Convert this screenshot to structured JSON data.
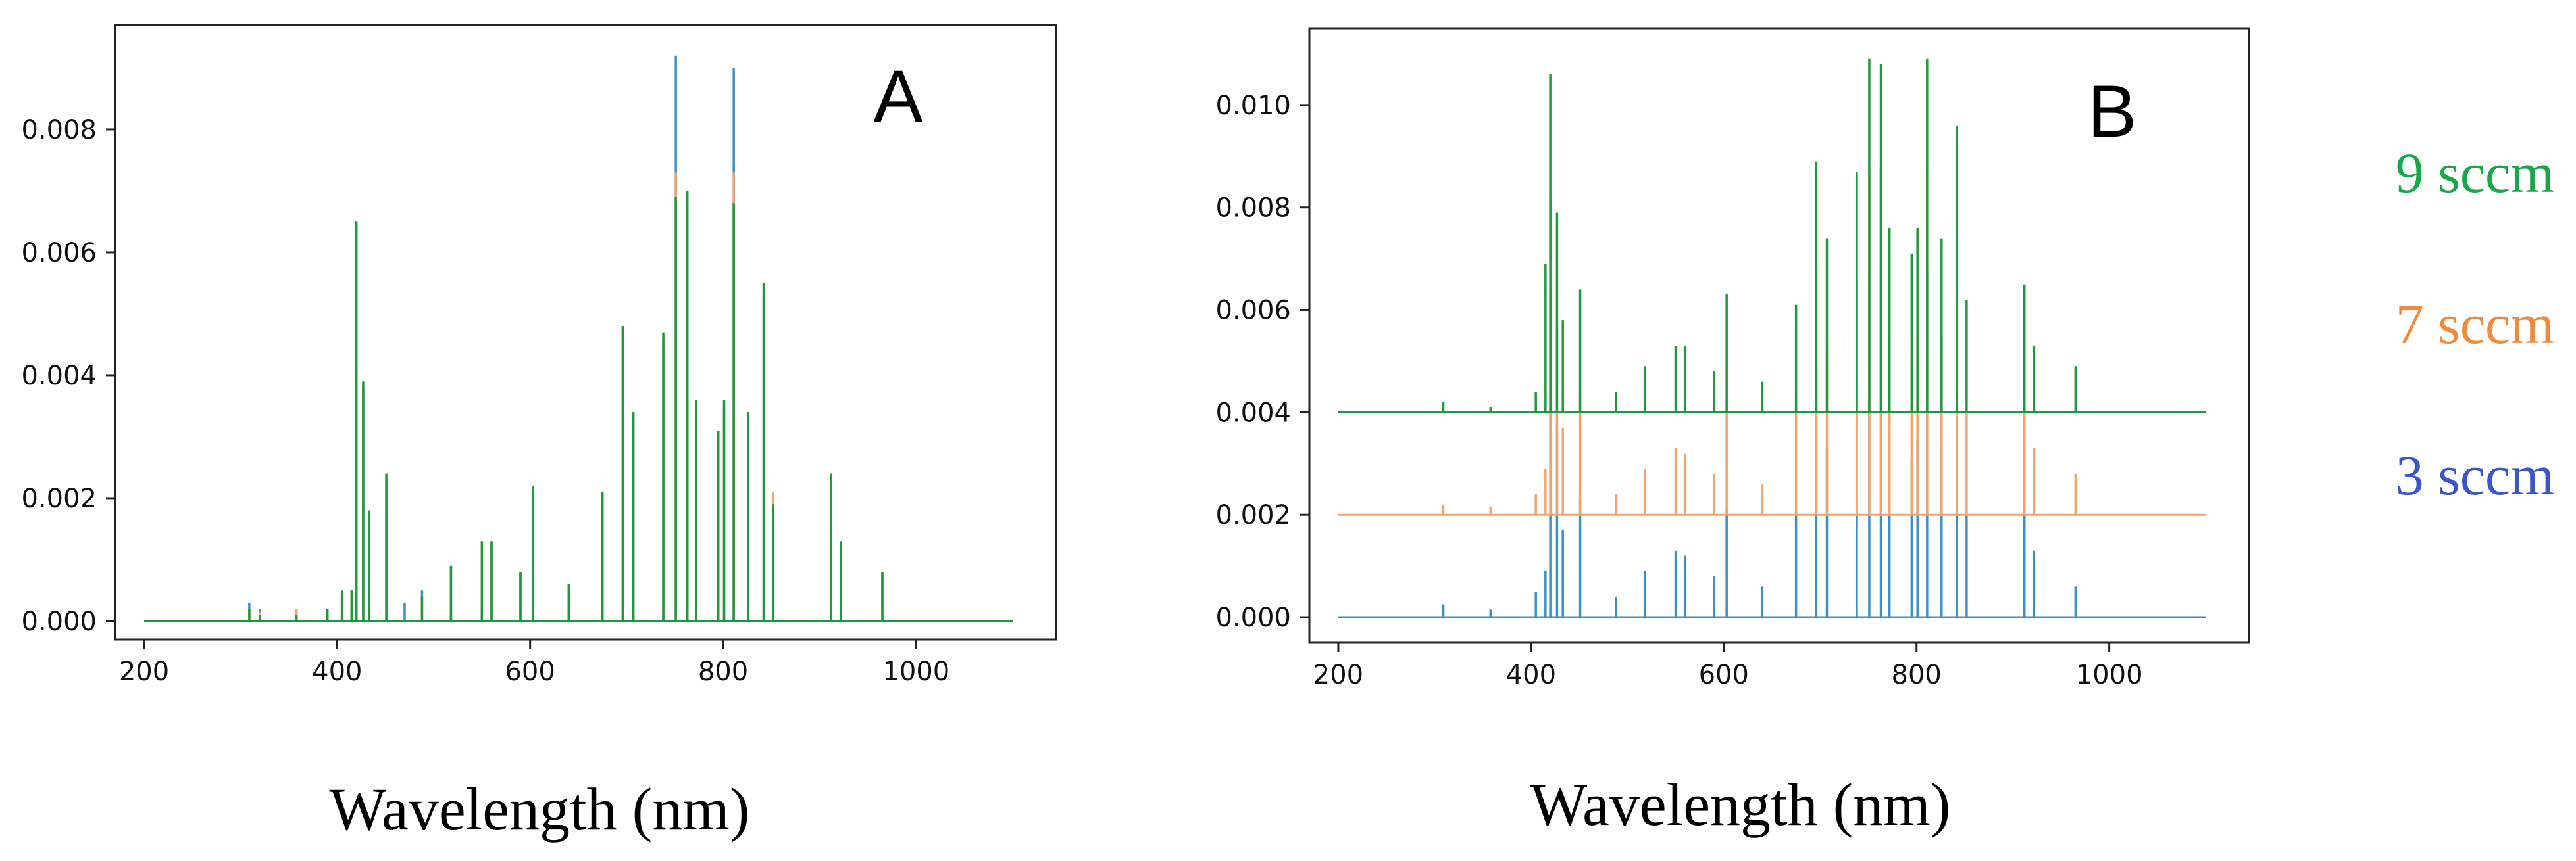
{
  "figure": {
    "shared_xlabel": "Wavelength  (nm)",
    "legend": [
      {
        "label": "9  sccm",
        "color": "#1aa64a"
      },
      {
        "label": "7  sccm",
        "color": "#f08a3c"
      },
      {
        "label": "3  sccm",
        "color": "#3a56c8"
      }
    ]
  },
  "chart_data": [
    {
      "panel": "A",
      "type": "line",
      "title": "A",
      "xlabel": "Wavelength  (nm)",
      "ylabel": "",
      "xlim": [
        170,
        1145
      ],
      "ylim": [
        -0.0003,
        0.0097
      ],
      "xticks": [
        200,
        400,
        600,
        800,
        1000
      ],
      "xtick_labels": [
        "200",
        "400",
        "600",
        "800",
        "1000"
      ],
      "yticks": [
        0.0,
        0.002,
        0.004,
        0.006,
        0.008
      ],
      "ytick_labels": [
        "0.000",
        "0.002",
        "0.004",
        "0.006",
        "0.008"
      ],
      "x_range": [
        200,
        1100
      ],
      "offset_step": 0,
      "grid": false,
      "series": [
        {
          "name": "3 sccm",
          "color": "#3b8fcc",
          "offset": 0,
          "peaks": [
            [
              309,
              0.0003
            ],
            [
              320,
              0.0002
            ],
            [
              358,
              0.00015
            ],
            [
              390,
              0.0002
            ],
            [
              405,
              0.0004
            ],
            [
              415,
              0.0005
            ],
            [
              420,
              0.0064
            ],
            [
              427,
              0.0038
            ],
            [
              433,
              0.0018
            ],
            [
              451,
              0.0023
            ],
            [
              470,
              0.0003
            ],
            [
              488,
              0.0005
            ],
            [
              518,
              0.0009
            ],
            [
              550,
              0.0013
            ],
            [
              560,
              0.0013
            ],
            [
              590,
              0.0008
            ],
            [
              603,
              0.0022
            ],
            [
              640,
              0.0006
            ],
            [
              675,
              0.0021
            ],
            [
              696,
              0.0048
            ],
            [
              707,
              0.0033
            ],
            [
              738,
              0.0046
            ],
            [
              751,
              0.0092
            ],
            [
              763,
              0.0069
            ],
            [
              772,
              0.0036
            ],
            [
              795,
              0.0031
            ],
            [
              801,
              0.0035
            ],
            [
              811,
              0.009
            ],
            [
              826,
              0.0034
            ],
            [
              842,
              0.0054
            ],
            [
              852,
              0.0019
            ],
            [
              912,
              0.0024
            ],
            [
              922,
              0.0013
            ],
            [
              965,
              0.0008
            ]
          ]
        },
        {
          "name": "7 sccm",
          "color": "#f5a36b",
          "offset": 0,
          "peaks": [
            [
              309,
              0.0002
            ],
            [
              320,
              0.00015
            ],
            [
              358,
              0.0002
            ],
            [
              390,
              0.0002
            ],
            [
              405,
              0.0004
            ],
            [
              415,
              0.0005
            ],
            [
              420,
              0.0064
            ],
            [
              427,
              0.0038
            ],
            [
              433,
              0.0018
            ],
            [
              451,
              0.0023
            ],
            [
              488,
              0.0004
            ],
            [
              518,
              0.0009
            ],
            [
              550,
              0.0013
            ],
            [
              560,
              0.0013
            ],
            [
              590,
              0.0008
            ],
            [
              603,
              0.0022
            ],
            [
              640,
              0.0006
            ],
            [
              675,
              0.0021
            ],
            [
              696,
              0.0048
            ],
            [
              707,
              0.0033
            ],
            [
              738,
              0.0046
            ],
            [
              751,
              0.0073
            ],
            [
              763,
              0.0069
            ],
            [
              772,
              0.0036
            ],
            [
              795,
              0.0031
            ],
            [
              801,
              0.0035
            ],
            [
              811,
              0.0073
            ],
            [
              826,
              0.0034
            ],
            [
              842,
              0.0055
            ],
            [
              852,
              0.0021
            ],
            [
              912,
              0.0024
            ],
            [
              922,
              0.0013
            ],
            [
              965,
              0.0008
            ]
          ]
        },
        {
          "name": "9 sccm",
          "color": "#1e9a3c",
          "offset": 0,
          "peaks": [
            [
              309,
              0.0002
            ],
            [
              320,
              0.0001
            ],
            [
              358,
              0.0001
            ],
            [
              390,
              0.0002
            ],
            [
              405,
              0.0005
            ],
            [
              415,
              0.0005
            ],
            [
              420,
              0.0065
            ],
            [
              427,
              0.0039
            ],
            [
              433,
              0.0018
            ],
            [
              451,
              0.0024
            ],
            [
              488,
              0.0004
            ],
            [
              518,
              0.0009
            ],
            [
              550,
              0.0013
            ],
            [
              560,
              0.0013
            ],
            [
              590,
              0.0008
            ],
            [
              603,
              0.0022
            ],
            [
              640,
              0.0006
            ],
            [
              675,
              0.0021
            ],
            [
              696,
              0.0048
            ],
            [
              707,
              0.0034
            ],
            [
              738,
              0.0047
            ],
            [
              751,
              0.0069
            ],
            [
              763,
              0.007
            ],
            [
              772,
              0.0036
            ],
            [
              795,
              0.0031
            ],
            [
              801,
              0.0036
            ],
            [
              811,
              0.0068
            ],
            [
              826,
              0.0034
            ],
            [
              842,
              0.0055
            ],
            [
              852,
              0.0019
            ],
            [
              912,
              0.0024
            ],
            [
              922,
              0.0013
            ],
            [
              965,
              0.0008
            ]
          ]
        }
      ]
    },
    {
      "panel": "B",
      "type": "line",
      "title": "B",
      "xlabel": "Wavelength  (nm)",
      "ylabel": "",
      "xlim": [
        170,
        1145
      ],
      "ylim": [
        -0.0005,
        0.0115
      ],
      "xticks": [
        200,
        400,
        600,
        800,
        1000
      ],
      "xtick_labels": [
        "200",
        "400",
        "600",
        "800",
        "1000"
      ],
      "yticks": [
        0.0,
        0.002,
        0.004,
        0.006,
        0.008,
        0.01
      ],
      "ytick_labels": [
        "0.000",
        "0.002",
        "0.004",
        "0.006",
        "0.008",
        "0.010"
      ],
      "x_range": [
        200,
        1100
      ],
      "offset_step": 0.002,
      "grid": false,
      "series": [
        {
          "name": "3 sccm",
          "color": "#3b8fcc",
          "offset": 0.0,
          "peaks": [
            [
              309,
              0.00025
            ],
            [
              358,
              0.00015
            ],
            [
              405,
              0.0005
            ],
            [
              415,
              0.0009
            ],
            [
              420,
              0.0064
            ],
            [
              427,
              0.0038
            ],
            [
              433,
              0.0017
            ],
            [
              451,
              0.0023
            ],
            [
              488,
              0.0004
            ],
            [
              518,
              0.0009
            ],
            [
              550,
              0.0013
            ],
            [
              560,
              0.0012
            ],
            [
              590,
              0.0008
            ],
            [
              603,
              0.0021
            ],
            [
              640,
              0.0006
            ],
            [
              675,
              0.0021
            ],
            [
              696,
              0.0048
            ],
            [
              707,
              0.0033
            ],
            [
              738,
              0.0046
            ],
            [
              751,
              0.0068
            ],
            [
              763,
              0.0068
            ],
            [
              772,
              0.0036
            ],
            [
              795,
              0.0031
            ],
            [
              801,
              0.0035
            ],
            [
              811,
              0.0068
            ],
            [
              826,
              0.0034
            ],
            [
              842,
              0.0055
            ],
            [
              852,
              0.002
            ],
            [
              912,
              0.0024
            ],
            [
              922,
              0.0013
            ],
            [
              965,
              0.0006
            ]
          ]
        },
        {
          "name": "7 sccm",
          "color": "#f5a36b",
          "offset": 0.002,
          "peaks": [
            [
              309,
              0.0002
            ],
            [
              358,
              0.00015
            ],
            [
              405,
              0.0004
            ],
            [
              415,
              0.0009
            ],
            [
              420,
              0.0063
            ],
            [
              427,
              0.0037
            ],
            [
              433,
              0.0017
            ],
            [
              451,
              0.0023
            ],
            [
              488,
              0.0004
            ],
            [
              518,
              0.0009
            ],
            [
              550,
              0.0013
            ],
            [
              560,
              0.0012
            ],
            [
              590,
              0.0008
            ],
            [
              603,
              0.0021
            ],
            [
              640,
              0.0006
            ],
            [
              675,
              0.0021
            ],
            [
              696,
              0.0048
            ],
            [
              707,
              0.0033
            ],
            [
              738,
              0.0046
            ],
            [
              751,
              0.0068
            ],
            [
              763,
              0.0068
            ],
            [
              772,
              0.0036
            ],
            [
              795,
              0.0031
            ],
            [
              801,
              0.0035
            ],
            [
              811,
              0.0068
            ],
            [
              826,
              0.0034
            ],
            [
              842,
              0.0055
            ],
            [
              852,
              0.002
            ],
            [
              912,
              0.0024
            ],
            [
              922,
              0.0013
            ],
            [
              965,
              0.0008
            ]
          ]
        },
        {
          "name": "9 sccm",
          "color": "#1e9a3c",
          "offset": 0.004,
          "peaks": [
            [
              309,
              0.0002
            ],
            [
              358,
              0.0001
            ],
            [
              405,
              0.0004
            ],
            [
              415,
              0.0029
            ],
            [
              420,
              0.0066
            ],
            [
              427,
              0.0039
            ],
            [
              433,
              0.0018
            ],
            [
              451,
              0.0024
            ],
            [
              488,
              0.0004
            ],
            [
              518,
              0.0009
            ],
            [
              550,
              0.0013
            ],
            [
              560,
              0.0013
            ],
            [
              590,
              0.0008
            ],
            [
              603,
              0.0023
            ],
            [
              640,
              0.0006
            ],
            [
              675,
              0.0021
            ],
            [
              696,
              0.0049
            ],
            [
              707,
              0.0034
            ],
            [
              738,
              0.0047
            ],
            [
              751,
              0.0069
            ],
            [
              763,
              0.0068
            ],
            [
              772,
              0.0036
            ],
            [
              795,
              0.0031
            ],
            [
              801,
              0.0036
            ],
            [
              811,
              0.0069
            ],
            [
              826,
              0.0034
            ],
            [
              842,
              0.0056
            ],
            [
              852,
              0.0022
            ],
            [
              912,
              0.0025
            ],
            [
              922,
              0.0013
            ],
            [
              965,
              0.0009
            ]
          ]
        }
      ]
    }
  ]
}
